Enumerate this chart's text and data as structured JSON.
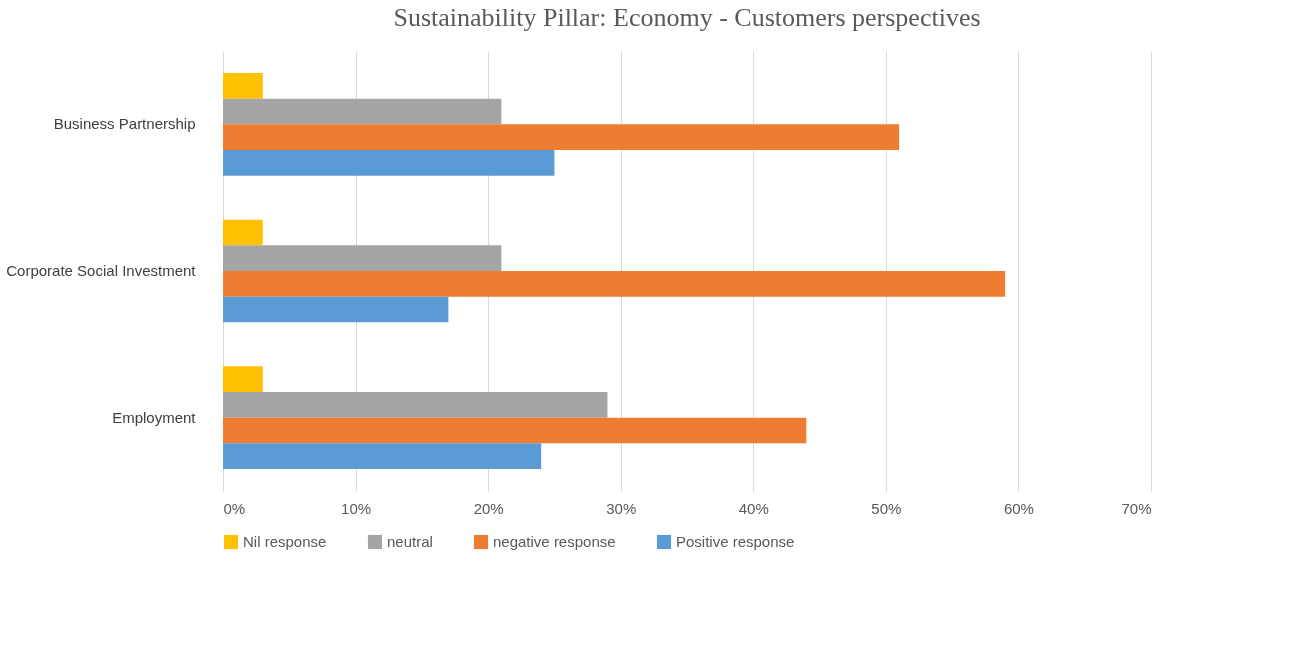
{
  "chart_data": {
    "type": "bar",
    "orientation": "horizontal",
    "title": "Sustainability Pillar: Economy - Customers perspectives",
    "categories": [
      "Business Partnership",
      "Corporate Social Investment",
      "Employment"
    ],
    "series": [
      {
        "name": "Nil response",
        "color": "#ffc000",
        "values": [
          3,
          3,
          3
        ]
      },
      {
        "name": "neutral",
        "color": "#a5a5a5",
        "values": [
          21,
          21,
          29
        ]
      },
      {
        "name": "negative response",
        "color": "#ed7d31",
        "values": [
          51,
          59,
          44
        ]
      },
      {
        "name": "Positive response",
        "color": "#5b9bd5",
        "values": [
          25,
          17,
          24
        ]
      }
    ],
    "xlim": [
      0,
      70
    ],
    "xticks": [
      {
        "value": 0,
        "label": "0%"
      },
      {
        "value": 10,
        "label": "10%"
      },
      {
        "value": 20,
        "label": "20%"
      },
      {
        "value": 30,
        "label": "30%"
      },
      {
        "value": 40,
        "label": "40%"
      },
      {
        "value": 50,
        "label": "50%"
      },
      {
        "value": 60,
        "label": "60%"
      },
      {
        "value": 70,
        "label": "70%"
      }
    ],
    "grid": "x",
    "legend": "bottom"
  }
}
